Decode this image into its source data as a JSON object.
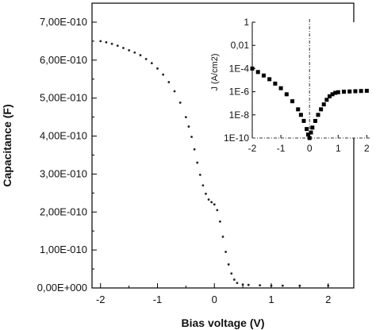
{
  "chart_data": [
    {
      "type": "scatter",
      "xlabel": "Bias voltage (V)",
      "ylabel": "Capacitance (F)",
      "xlim": [
        -2.15,
        2.45
      ],
      "ylim": [
        0,
        7.5e-10
      ],
      "x_ticks": [
        -2,
        -1,
        0,
        1,
        2
      ],
      "x_tick_labels": [
        "-2",
        "-1",
        "0",
        "1",
        "2"
      ],
      "y_ticks": [
        0,
        1e-10,
        2e-10,
        3e-10,
        4e-10,
        5e-10,
        6e-10,
        7e-10
      ],
      "y_tick_labels": [
        "0,00E+000",
        "1,00E-010",
        "2,00E-010",
        "3,00E-010",
        "4,00E-010",
        "5,00E-010",
        "6,00E-010",
        "7,00E-010"
      ],
      "grid": false,
      "series": [
        {
          "x": [
            -2.0,
            -1.9,
            -1.8,
            -1.7,
            -1.6,
            -1.5,
            -1.4,
            -1.3,
            -1.2,
            -1.1,
            -1.0,
            -0.9,
            -0.8,
            -0.7,
            -0.6,
            -0.5,
            -0.45,
            -0.4,
            -0.35,
            -0.3,
            -0.25,
            -0.2,
            -0.15,
            -0.1,
            -0.05,
            0.0,
            0.05,
            0.1,
            0.15,
            0.2,
            0.25,
            0.3,
            0.35,
            0.4,
            0.5,
            0.6,
            0.8,
            1.0,
            1.2,
            1.5,
            2.0
          ],
          "y": [
            6.5e-10,
            6.47e-10,
            6.43e-10,
            6.38e-10,
            6.32e-10,
            6.26e-10,
            6.2e-10,
            6.13e-10,
            6.03e-10,
            5.92e-10,
            5.78e-10,
            5.62e-10,
            5.42e-10,
            5.18e-10,
            4.88e-10,
            4.5e-10,
            4.25e-10,
            3.98e-10,
            3.65e-10,
            3.3e-10,
            2.98e-10,
            2.7e-10,
            2.48e-10,
            2.33e-10,
            2.26e-10,
            2.2e-10,
            2.05e-10,
            1.75e-10,
            1.35e-10,
            9.5e-11,
            6.2e-11,
            3.8e-11,
            2.2e-11,
            1.3e-11,
            9e-12,
            8e-12,
            7e-12,
            6e-12,
            6e-12,
            6e-12,
            6e-12
          ]
        }
      ]
    },
    {
      "type": "scatter",
      "ylabel": "J (A/cm2)",
      "y_scale": "log",
      "xlim": [
        -2,
        2.1
      ],
      "ylim": [
        1e-10,
        1
      ],
      "x_ticks": [
        -2,
        -1,
        0,
        1,
        2
      ],
      "x_tick_labels": [
        "-2",
        "-1",
        "0",
        "1",
        "2"
      ],
      "y_ticks": [
        1e-10,
        1e-08,
        1e-06,
        0.0001,
        0.01,
        1
      ],
      "y_tick_labels": [
        "1E-10",
        "1E-8",
        "1E-6",
        "1E-4",
        "0,01",
        "1"
      ],
      "reference_lines": {
        "x": 0,
        "y": 1e-10
      },
      "series": [
        {
          "x": [
            -2.0,
            -1.8,
            -1.6,
            -1.4,
            -1.2,
            -1.0,
            -0.8,
            -0.6,
            -0.4,
            -0.3,
            -0.2,
            -0.1,
            -0.05,
            0.0,
            0.05,
            0.1,
            0.2,
            0.3,
            0.4,
            0.5,
            0.6,
            0.7,
            0.8,
            0.9,
            1.0,
            1.2,
            1.4,
            1.6,
            1.8,
            2.0
          ],
          "y": [
            0.0001,
            5e-05,
            2.5e-05,
            1.2e-05,
            5e-06,
            2e-06,
            6e-07,
            1.5e-07,
            3e-08,
            1e-08,
            3e-09,
            6e-10,
            2e-10,
            1e-10,
            3e-10,
            8e-10,
            3e-09,
            1e-08,
            3e-08,
            8e-08,
            2e-07,
            4e-07,
            6e-07,
            8e-07,
            9e-07,
            1e-06,
            1.05e-06,
            1.1e-06,
            1.15e-06,
            1.2e-06
          ]
        }
      ]
    }
  ]
}
